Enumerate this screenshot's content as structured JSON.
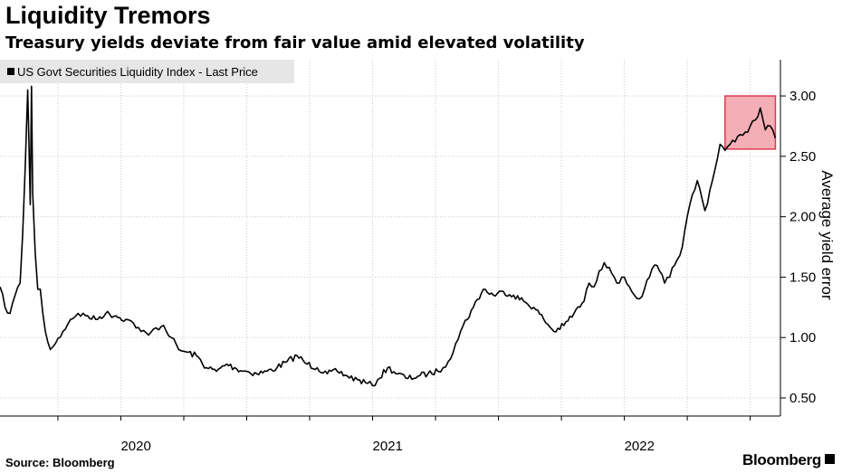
{
  "header": {
    "title": "Liquidity Tremors",
    "subtitle": "Treasury yields deviate from fair value amid elevated volatility"
  },
  "footer": {
    "source": "Source: Bloomberg",
    "brand": "Bloomberg"
  },
  "colors": {
    "line": "#000000",
    "grid": "#cccccc",
    "legend_bg": "#e6e6e6",
    "highlight_fill": "#f2a0a8",
    "highlight_stroke": "#e0384f"
  },
  "chart_data": {
    "type": "line",
    "title": "Liquidity Tremors",
    "subtitle": "Treasury yields deviate from fair value amid elevated volatility",
    "ylabel": "Average yield error",
    "xlabel": "",
    "ylim": [
      0.35,
      3.3
    ],
    "xlim": [
      2019.52,
      2022.62
    ],
    "y_ticks": [
      "0.50",
      "1.00",
      "1.50",
      "2.00",
      "2.50",
      "3.00"
    ],
    "x_tick_labels": [
      {
        "label": "2020",
        "x": 2020.06
      },
      {
        "label": "2021",
        "x": 2021.06
      },
      {
        "label": "2022",
        "x": 2022.06
      }
    ],
    "grid": true,
    "legend": {
      "label": "US Govt Securities Liquidity Index - Last Price",
      "position": "top-left"
    },
    "highlight": {
      "x": [
        2022.4,
        2022.6
      ],
      "y": [
        2.56,
        3.0
      ]
    },
    "series": [
      {
        "name": "US Govt Securities Liquidity Index - Last Price",
        "x": [
          2019.52,
          2019.54,
          2019.56,
          2019.58,
          2019.6,
          2019.61,
          2019.62,
          2019.63,
          2019.635,
          2019.64,
          2019.645,
          2019.65,
          2019.66,
          2019.67,
          2019.68,
          2019.69,
          2019.7,
          2019.72,
          2019.74,
          2019.77,
          2019.8,
          2019.83,
          2019.86,
          2019.9,
          2019.94,
          2019.98,
          2020.02,
          2020.05,
          2020.08,
          2020.11,
          2020.14,
          2020.17,
          2020.2,
          2020.23,
          2020.26,
          2020.3,
          2020.34,
          2020.38,
          2020.42,
          2020.46,
          2020.5,
          2020.54,
          2020.58,
          2020.62,
          2020.66,
          2020.7,
          2020.74,
          2020.78,
          2020.82,
          2020.86,
          2020.9,
          2020.94,
          2020.98,
          2021.0,
          2021.02,
          2021.06,
          2021.1,
          2021.14,
          2021.18,
          2021.22,
          2021.26,
          2021.28,
          2021.3,
          2021.33,
          2021.36,
          2021.4,
          2021.44,
          2021.48,
          2021.52,
          2021.56,
          2021.6,
          2021.64,
          2021.68,
          2021.72,
          2021.76,
          2021.8,
          2021.84,
          2021.86,
          2021.88,
          2021.9,
          2021.92,
          2021.94,
          2021.96,
          2021.98,
          2022.0,
          2022.02,
          2022.04,
          2022.06,
          2022.08,
          2022.1,
          2022.12,
          2022.14,
          2022.16,
          2022.18,
          2022.2,
          2022.23,
          2022.26,
          2022.29,
          2022.32,
          2022.35,
          2022.38,
          2022.4,
          2022.42,
          2022.44,
          2022.46,
          2022.48,
          2022.5,
          2022.52,
          2022.54,
          2022.56,
          2022.58,
          2022.6
        ],
        "y": [
          1.42,
          1.25,
          1.2,
          1.35,
          1.45,
          1.85,
          2.4,
          3.05,
          2.6,
          2.1,
          3.08,
          2.2,
          1.7,
          1.4,
          1.4,
          1.2,
          1.05,
          0.9,
          0.95,
          1.05,
          1.15,
          1.2,
          1.18,
          1.15,
          1.2,
          1.18,
          1.15,
          1.12,
          1.05,
          1.02,
          1.08,
          1.1,
          1.0,
          0.9,
          0.88,
          0.85,
          0.75,
          0.72,
          0.78,
          0.74,
          0.72,
          0.7,
          0.72,
          0.75,
          0.8,
          0.85,
          0.78,
          0.75,
          0.7,
          0.72,
          0.68,
          0.65,
          0.62,
          0.6,
          0.65,
          0.75,
          0.7,
          0.66,
          0.68,
          0.7,
          0.72,
          0.75,
          0.8,
          0.95,
          1.1,
          1.25,
          1.4,
          1.35,
          1.38,
          1.35,
          1.3,
          1.25,
          1.15,
          1.05,
          1.1,
          1.2,
          1.3,
          1.45,
          1.42,
          1.55,
          1.62,
          1.58,
          1.5,
          1.45,
          1.5,
          1.42,
          1.35,
          1.32,
          1.4,
          1.5,
          1.6,
          1.55,
          1.45,
          1.5,
          1.6,
          1.75,
          2.1,
          2.3,
          2.05,
          2.3,
          2.6,
          2.55,
          2.6,
          2.62,
          2.68,
          2.7,
          2.75,
          2.8,
          2.9,
          2.72,
          2.75,
          2.65
        ]
      }
    ]
  }
}
